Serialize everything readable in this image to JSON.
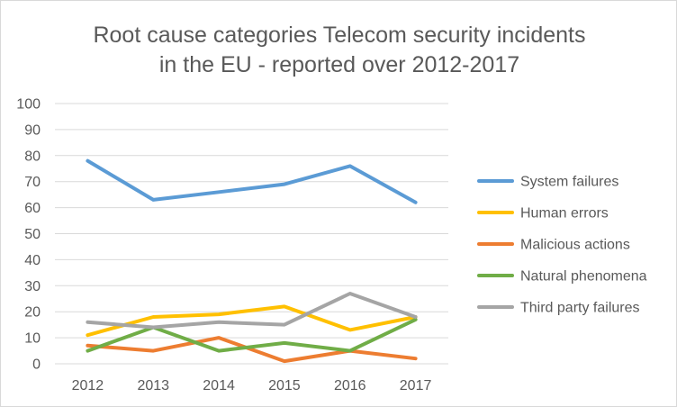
{
  "chart_data": {
    "type": "line",
    "title_lines": [
      "Root cause categories Telecom security incidents",
      "in the EU - reported over 2012-2017"
    ],
    "xlabel": "",
    "ylabel": "",
    "categories": [
      "2012",
      "2013",
      "2014",
      "2015",
      "2016",
      "2017"
    ],
    "ylim": [
      0,
      100
    ],
    "y_ticks": [
      "0",
      "10",
      "20",
      "30",
      "40",
      "50",
      "60",
      "70",
      "80",
      "90",
      "100"
    ],
    "grid": "horizontal",
    "legend_position": "right",
    "series": [
      {
        "name": "System failures",
        "color": "#5b9bd5",
        "values": [
          78,
          63,
          66,
          69,
          76,
          62
        ]
      },
      {
        "name": "Human errors",
        "color": "#ffc000",
        "values": [
          11,
          18,
          19,
          22,
          13,
          18
        ]
      },
      {
        "name": "Malicious actions",
        "color": "#ed7d31",
        "values": [
          7,
          5,
          10,
          1,
          5,
          2
        ]
      },
      {
        "name": "Natural phenomena",
        "color": "#70ad47",
        "values": [
          5,
          14,
          5,
          8,
          5,
          17
        ]
      },
      {
        "name": "Third party failures",
        "color": "#a5a5a5",
        "values": [
          16,
          14,
          16,
          15,
          27,
          18
        ]
      }
    ]
  }
}
